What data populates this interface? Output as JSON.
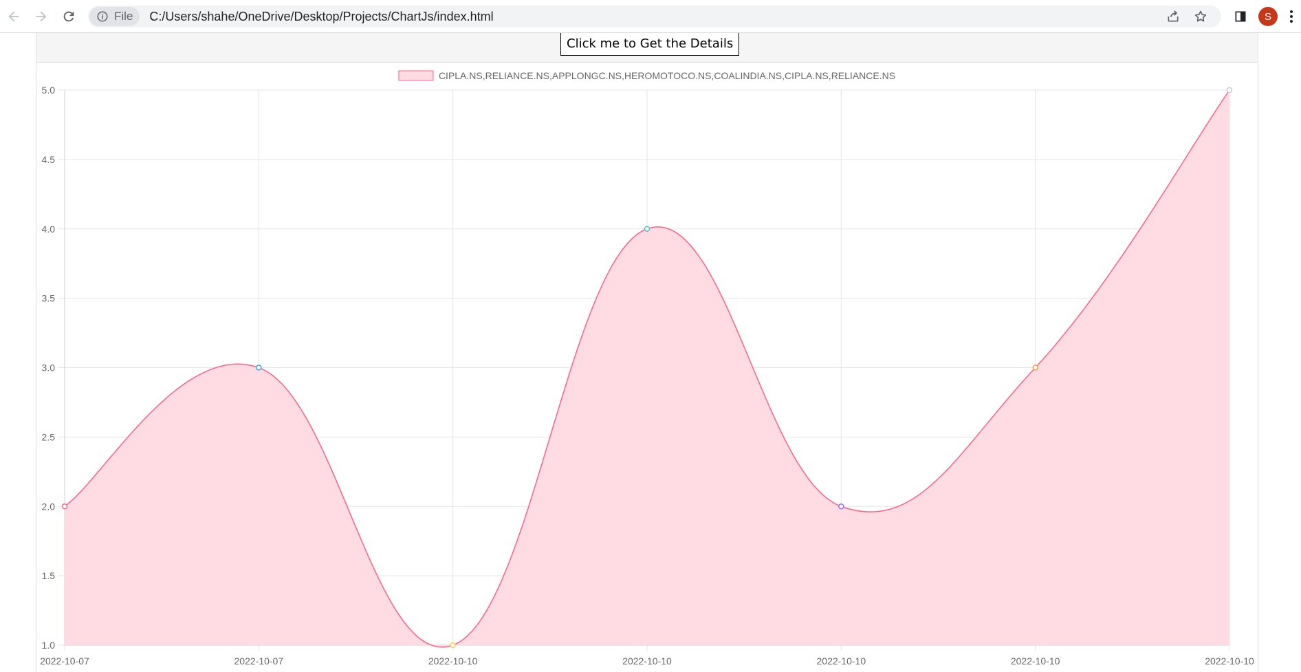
{
  "browser": {
    "site_chip_label": "File",
    "url": "C:/Users/shahe/OneDrive/Desktop/Projects/ChartJs/index.html",
    "avatar_letter": "S"
  },
  "page": {
    "button_label": "Click me to Get the Details"
  },
  "chart_data": {
    "type": "area",
    "categories": [
      "2022-10-07",
      "2022-10-07",
      "2022-10-10",
      "2022-10-10",
      "2022-10-10",
      "2022-10-10",
      "2022-10-10"
    ],
    "series": [
      {
        "name": "CIPLA.NS,RELIANCE.NS,APPLONGC.NS,HEROMOTOCO.NS,COALINDIA.NS,CIPLA.NS,RELIANCE.NS",
        "values": [
          2,
          3,
          1,
          4,
          2,
          3,
          5
        ],
        "line_color": "#ff6384",
        "fill_color": "#ffdce4"
      }
    ],
    "point_colors": [
      "#ff6384",
      "#36a2eb",
      "#ffce56",
      "#4bc0c0",
      "#9966ff",
      "#ff9f40",
      "#c9cbcf"
    ],
    "y_ticks": [
      "1.0",
      "1.5",
      "2.0",
      "2.5",
      "3.0",
      "3.5",
      "4.0",
      "4.5",
      "5.0"
    ],
    "ylim": [
      1,
      5
    ],
    "grid": true,
    "legend_position": "top-center",
    "smooth": true
  }
}
